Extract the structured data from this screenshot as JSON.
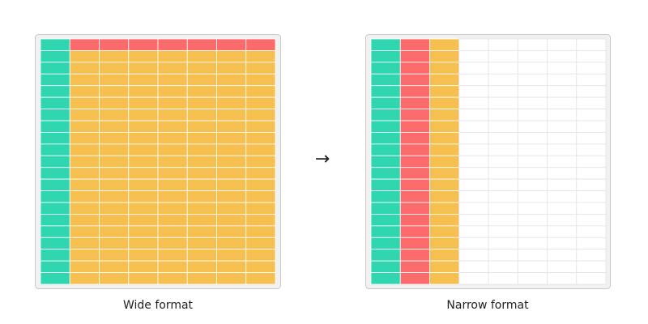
{
  "wide": {
    "label": "Wide format"
  },
  "arrow": "→",
  "narrow": {
    "label": "Narrow format"
  }
}
